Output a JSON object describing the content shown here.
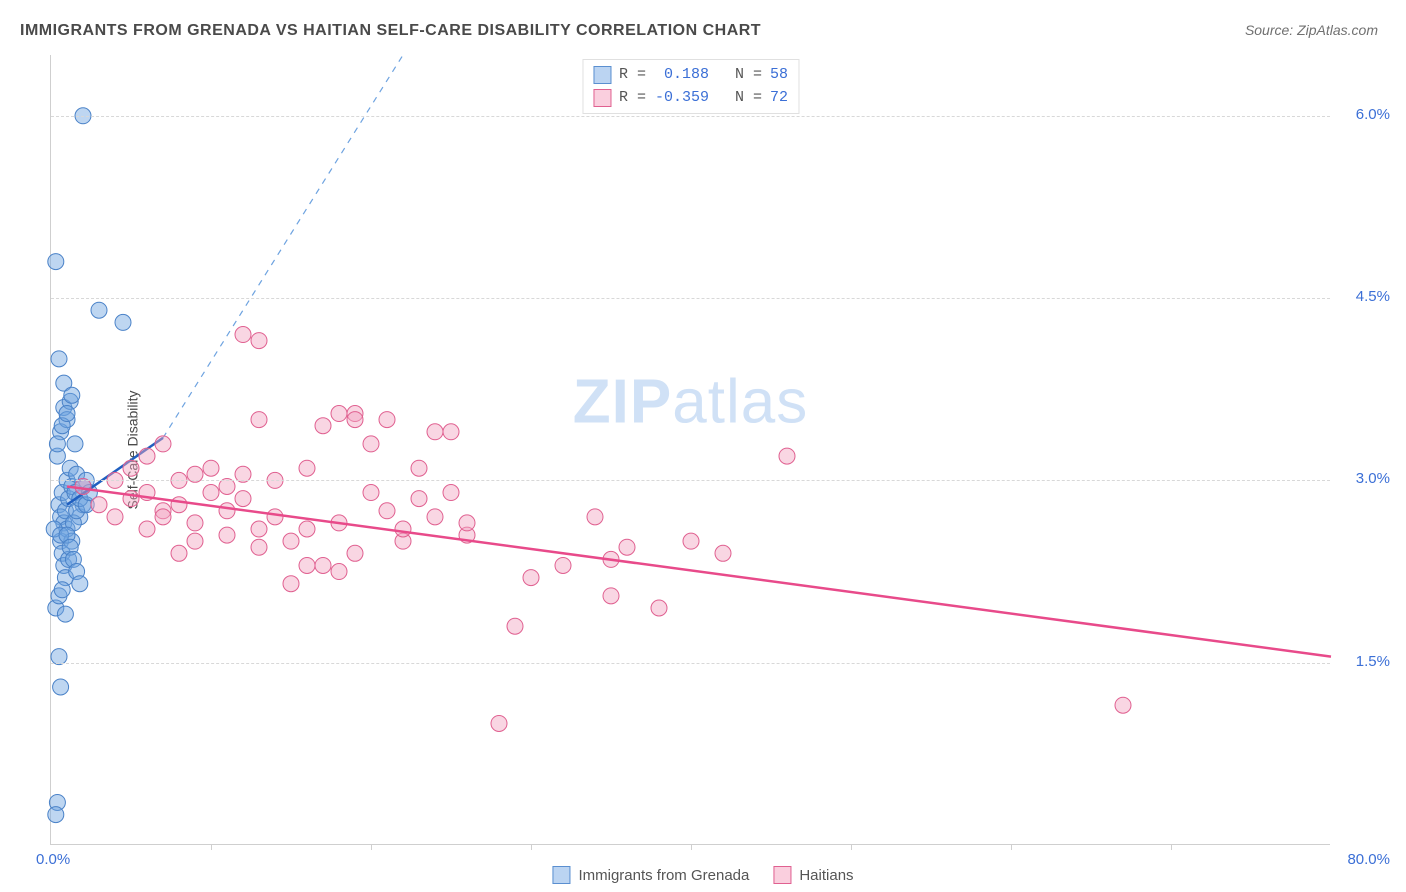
{
  "title": "IMMIGRANTS FROM GRENADA VS HAITIAN SELF-CARE DISABILITY CORRELATION CHART",
  "source": "Source: ZipAtlas.com",
  "ylabel": "Self-Care Disability",
  "watermark_bold": "ZIP",
  "watermark_light": "atlas",
  "chart": {
    "type": "scatter",
    "xlim": [
      0,
      80
    ],
    "ylim": [
      0,
      6.5
    ],
    "x_origin_label": "0.0%",
    "x_max_label": "80.0%",
    "y_ticks": [
      {
        "v": 1.5,
        "label": "1.5%"
      },
      {
        "v": 3.0,
        "label": "3.0%"
      },
      {
        "v": 4.5,
        "label": "4.5%"
      },
      {
        "v": 6.0,
        "label": "6.0%"
      }
    ],
    "x_tick_step": 10,
    "marker_radius": 8,
    "marker_opacity": 0.45,
    "grid_color": "#d8d8d8",
    "background": "#ffffff",
    "series": [
      {
        "name": "Immigrants from Grenada",
        "color": "#6ea3e0",
        "stroke": "#4a82c8",
        "R": "0.188",
        "N": "58",
        "trend": {
          "x1": 1,
          "y1": 2.8,
          "x2": 7,
          "y2": 3.35,
          "color": "#1f5fc0",
          "width": 2.5
        },
        "trend_ext": {
          "x1": 7,
          "y1": 3.35,
          "x2": 22,
          "y2": 6.5,
          "color": "#6ea3e0",
          "dash": "6,6",
          "width": 1.2
        },
        "points": [
          [
            0.5,
            2.8
          ],
          [
            0.6,
            2.7
          ],
          [
            0.7,
            2.9
          ],
          [
            0.8,
            2.65
          ],
          [
            0.9,
            2.75
          ],
          [
            1.0,
            3.0
          ],
          [
            1.1,
            2.85
          ],
          [
            1.2,
            3.1
          ],
          [
            1.3,
            2.95
          ],
          [
            0.6,
            2.5
          ],
          [
            0.7,
            2.4
          ],
          [
            0.8,
            2.3
          ],
          [
            0.9,
            2.2
          ],
          [
            1.0,
            2.6
          ],
          [
            1.5,
            2.9
          ],
          [
            1.6,
            3.05
          ],
          [
            1.8,
            2.7
          ],
          [
            2.0,
            2.8
          ],
          [
            2.2,
            3.0
          ],
          [
            0.4,
            3.2
          ],
          [
            0.6,
            3.4
          ],
          [
            0.8,
            3.6
          ],
          [
            1.0,
            3.5
          ],
          [
            1.2,
            3.65
          ],
          [
            0.5,
            4.0
          ],
          [
            0.8,
            3.8
          ],
          [
            1.5,
            3.3
          ],
          [
            3.0,
            4.4
          ],
          [
            4.5,
            4.3
          ],
          [
            0.3,
            4.8
          ],
          [
            2.0,
            6.0
          ],
          [
            0.3,
            1.95
          ],
          [
            0.5,
            2.05
          ],
          [
            0.7,
            2.1
          ],
          [
            0.9,
            1.9
          ],
          [
            1.1,
            2.35
          ],
          [
            1.3,
            2.5
          ],
          [
            0.5,
            1.55
          ],
          [
            0.6,
            1.3
          ],
          [
            0.4,
            0.35
          ],
          [
            0.3,
            0.25
          ],
          [
            0.2,
            2.6
          ],
          [
            0.6,
            2.55
          ],
          [
            1.4,
            2.65
          ],
          [
            1.6,
            2.75
          ],
          [
            1.8,
            2.85
          ],
          [
            2.0,
            2.95
          ],
          [
            2.2,
            2.8
          ],
          [
            2.4,
            2.9
          ],
          [
            1.0,
            2.55
          ],
          [
            1.2,
            2.45
          ],
          [
            1.4,
            2.35
          ],
          [
            1.6,
            2.25
          ],
          [
            1.8,
            2.15
          ],
          [
            0.4,
            3.3
          ],
          [
            0.7,
            3.45
          ],
          [
            1.0,
            3.55
          ],
          [
            1.3,
            3.7
          ]
        ]
      },
      {
        "name": "Haitians",
        "color": "#f2a4c0",
        "stroke": "#e06090",
        "R": "-0.359",
        "N": "72",
        "trend": {
          "x1": 1,
          "y1": 2.95,
          "x2": 80,
          "y2": 1.55,
          "color": "#e84a8a",
          "width": 2.5
        },
        "points": [
          [
            2,
            2.95
          ],
          [
            3,
            2.8
          ],
          [
            4,
            3.0
          ],
          [
            5,
            2.85
          ],
          [
            6,
            2.9
          ],
          [
            7,
            2.75
          ],
          [
            8,
            3.0
          ],
          [
            4,
            2.7
          ],
          [
            5,
            3.1
          ],
          [
            6,
            2.6
          ],
          [
            7,
            2.7
          ],
          [
            8,
            2.8
          ],
          [
            9,
            2.65
          ],
          [
            10,
            2.9
          ],
          [
            11,
            2.75
          ],
          [
            12,
            2.85
          ],
          [
            13,
            2.6
          ],
          [
            14,
            2.7
          ],
          [
            10,
            3.1
          ],
          [
            12,
            4.2
          ],
          [
            13,
            3.5
          ],
          [
            15,
            2.5
          ],
          [
            16,
            2.6
          ],
          [
            17,
            2.3
          ],
          [
            18,
            2.65
          ],
          [
            19,
            2.4
          ],
          [
            20,
            3.3
          ],
          [
            21,
            3.5
          ],
          [
            22,
            2.5
          ],
          [
            23,
            3.1
          ],
          [
            24,
            3.4
          ],
          [
            25,
            2.9
          ],
          [
            26,
            2.55
          ],
          [
            19,
            3.55
          ],
          [
            28,
            1.0
          ],
          [
            29,
            1.8
          ],
          [
            30,
            2.2
          ],
          [
            32,
            2.3
          ],
          [
            34,
            2.7
          ],
          [
            35,
            2.35
          ],
          [
            36,
            2.45
          ],
          [
            38,
            1.95
          ],
          [
            40,
            2.5
          ],
          [
            42,
            2.4
          ],
          [
            46,
            3.2
          ],
          [
            35,
            2.05
          ],
          [
            67,
            1.15
          ],
          [
            15,
            2.15
          ],
          [
            16,
            2.3
          ],
          [
            18,
            2.25
          ],
          [
            8,
            2.4
          ],
          [
            9,
            2.5
          ],
          [
            11,
            2.55
          ],
          [
            13,
            2.45
          ],
          [
            6,
            3.2
          ],
          [
            7,
            3.3
          ],
          [
            9,
            3.05
          ],
          [
            21,
            2.75
          ],
          [
            23,
            2.85
          ],
          [
            20,
            2.9
          ],
          [
            22,
            2.6
          ],
          [
            24,
            2.7
          ],
          [
            26,
            2.65
          ],
          [
            11,
            2.95
          ],
          [
            12,
            3.05
          ],
          [
            14,
            3.0
          ],
          [
            16,
            3.1
          ],
          [
            17,
            3.45
          ],
          [
            19,
            3.5
          ],
          [
            18,
            3.55
          ],
          [
            25,
            3.4
          ],
          [
            13,
            4.15
          ]
        ]
      }
    ]
  },
  "legend_bottom": [
    {
      "swatch": "blue",
      "label": "Immigrants from Grenada"
    },
    {
      "swatch": "pink",
      "label": "Haitians"
    }
  ]
}
